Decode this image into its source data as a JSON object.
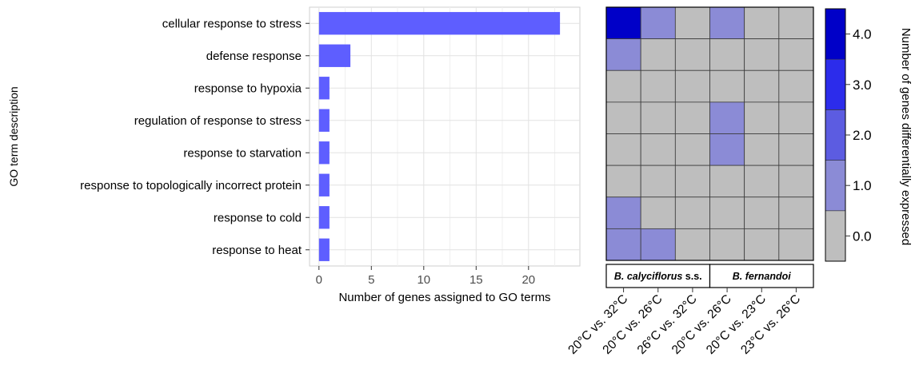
{
  "chart_data": [
    {
      "type": "bar",
      "orientation": "horizontal",
      "categories": [
        "cellular response to stress",
        "defense response",
        "response to hypoxia",
        "regulation of response to stress",
        "response to starvation",
        "response to topologically incorrect protein",
        "response to cold",
        "response to heat"
      ],
      "values": [
        23,
        3,
        1,
        1,
        1,
        1,
        1,
        1
      ],
      "xlabel": "Number of genes assigned to GO terms",
      "ylabel": "GO term description",
      "xlim": [
        -0.9,
        24.9
      ],
      "xticks": [
        "0",
        "5",
        "10",
        "15",
        "20"
      ],
      "grid": true,
      "bar_color": "#5e5eff"
    },
    {
      "type": "heatmap",
      "rows": [
        "cellular response to stress",
        "defense response",
        "response to hypoxia",
        "regulation of response to stress",
        "response to starvation",
        "response to topologically incorrect protein",
        "response to cold",
        "response to heat"
      ],
      "columns": [
        "20°C vs. 32°C",
        "20°C vs. 26°C",
        "26°C vs. 32°C",
        "20°C vs. 26°C",
        "20°C vs. 23°C",
        "23°C vs. 26°C"
      ],
      "groups": [
        {
          "name": "B. calyciflorus",
          "suffix": " s.s.",
          "columns": 3
        },
        {
          "name": "B. fernandoi",
          "suffix": "",
          "columns": 3
        }
      ],
      "values": [
        [
          4,
          1,
          0,
          1,
          0,
          0
        ],
        [
          1,
          0,
          0,
          0,
          0,
          0
        ],
        [
          0,
          0,
          0,
          0,
          0,
          0
        ],
        [
          0,
          0,
          0,
          1,
          0,
          0
        ],
        [
          0,
          0,
          0,
          1,
          0,
          0
        ],
        [
          0,
          0,
          0,
          0,
          0,
          0
        ],
        [
          1,
          0,
          0,
          0,
          0,
          0
        ],
        [
          1,
          1,
          0,
          0,
          0,
          0
        ]
      ],
      "legend": {
        "title": "Number of genes differentially expressed",
        "tick_labels": [
          "0.0",
          "1.0",
          "2.0",
          "3.0",
          "4.0"
        ],
        "tick_values": [
          0,
          1,
          2,
          3,
          4
        ],
        "range": [
          -0.5,
          4.5
        ],
        "bins": [
          {
            "from": -0.5,
            "to": 0.5,
            "color": "#bebebe"
          },
          {
            "from": 0.5,
            "to": 1.5,
            "color": "#8b8bd6"
          },
          {
            "from": 1.5,
            "to": 2.5,
            "color": "#5c5ce1"
          },
          {
            "from": 2.5,
            "to": 3.5,
            "color": "#2c2ceb"
          },
          {
            "from": 3.5,
            "to": 4.5,
            "color": "#0000c8"
          }
        ]
      }
    }
  ]
}
